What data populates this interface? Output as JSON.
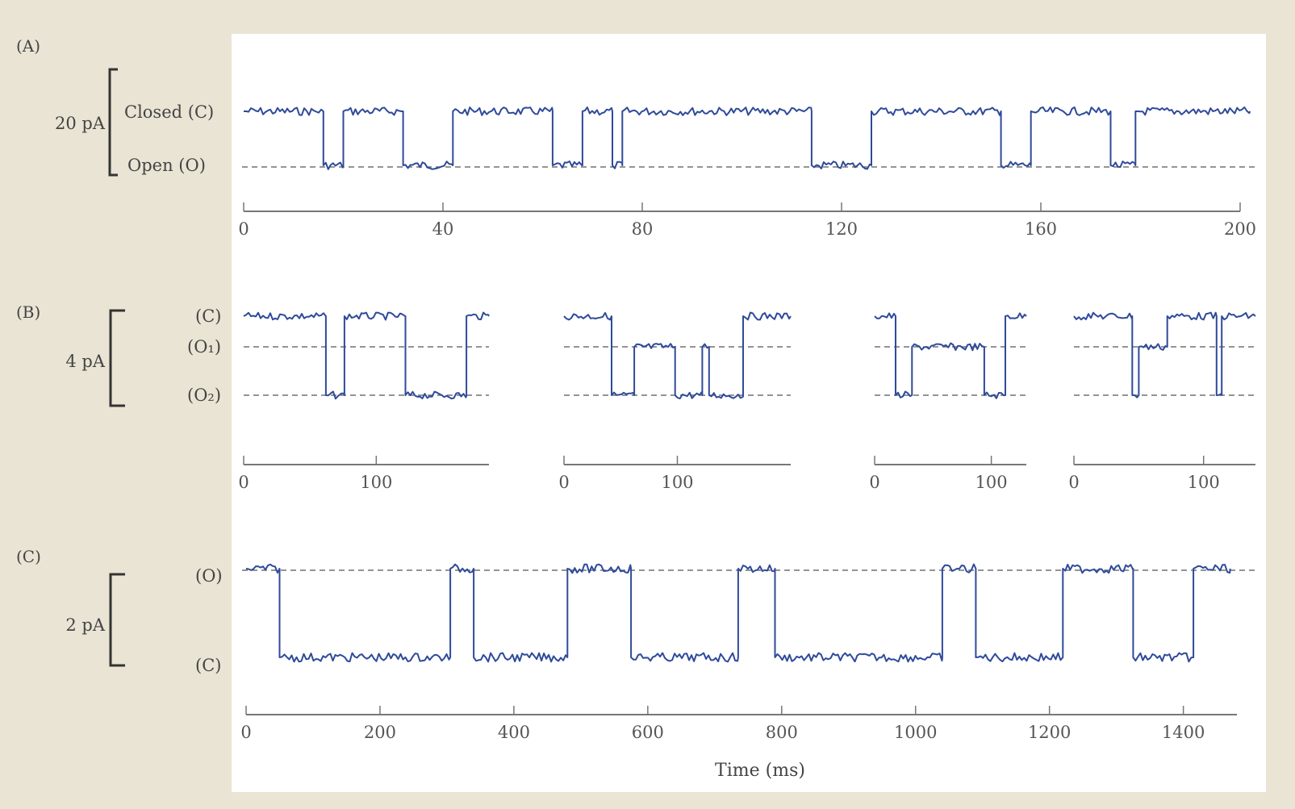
{
  "chart_data": [
    {
      "type": "line",
      "panel": "(A)",
      "scale_bar": "20 pA",
      "levels": [
        {
          "name": "closed",
          "label": "Closed (C)",
          "value": 0
        },
        {
          "name": "open",
          "label": "Open (O)",
          "value": -1
        }
      ],
      "xlim": [
        0,
        200
      ],
      "xticks": [
        0,
        40,
        80,
        120,
        160,
        200
      ],
      "segments": [
        {
          "xlim": [
            0,
            200
          ],
          "level_sequence": [
            [
              0,
              "C"
            ],
            [
              16,
              "O"
            ],
            [
              20,
              "C"
            ],
            [
              32,
              "O"
            ],
            [
              42,
              "C"
            ],
            [
              62,
              "O"
            ],
            [
              68,
              "C"
            ],
            [
              74,
              "O"
            ],
            [
              76,
              "C"
            ],
            [
              114,
              "O"
            ],
            [
              126,
              "C"
            ],
            [
              152,
              "O"
            ],
            [
              158,
              "C"
            ],
            [
              174,
              "O"
            ],
            [
              179,
              "C"
            ],
            [
              202,
              "C"
            ]
          ]
        }
      ]
    },
    {
      "type": "line",
      "panel": "(B)",
      "scale_bar": "4 pA",
      "levels": [
        {
          "name": "closed",
          "label": "(C)",
          "value": 0
        },
        {
          "name": "o1",
          "label": "(O₁)",
          "value": -1
        },
        {
          "name": "o2",
          "label": "(O₂)",
          "value": -2
        }
      ],
      "segments": [
        {
          "xlim": [
            0,
            185
          ],
          "xticks": [
            0,
            100
          ],
          "level_sequence": [
            [
              0,
              "C"
            ],
            [
              62,
              "O2"
            ],
            [
              72,
              "O2"
            ],
            [
              76,
              "C"
            ],
            [
              122,
              "O2"
            ],
            [
              168,
              "C"
            ],
            [
              185,
              "C"
            ]
          ]
        },
        {
          "xlim": [
            0,
            200
          ],
          "xticks": [
            0,
            100
          ],
          "level_sequence": [
            [
              0,
              "C"
            ],
            [
              42,
              "O2"
            ],
            [
              62,
              "O1"
            ],
            [
              98,
              "O2"
            ],
            [
              122,
              "O1"
            ],
            [
              128,
              "O2"
            ],
            [
              158,
              "C"
            ],
            [
              200,
              "C"
            ]
          ]
        },
        {
          "xlim": [
            0,
            130
          ],
          "xticks": [
            0,
            100
          ],
          "level_sequence": [
            [
              0,
              "C"
            ],
            [
              18,
              "O2"
            ],
            [
              32,
              "O1"
            ],
            [
              94,
              "O2"
            ],
            [
              112,
              "C"
            ],
            [
              130,
              "C"
            ]
          ]
        },
        {
          "xlim": [
            0,
            140
          ],
          "xticks": [
            0,
            100
          ],
          "level_sequence": [
            [
              0,
              "C"
            ],
            [
              45,
              "O2"
            ],
            [
              50,
              "O1"
            ],
            [
              72,
              "C"
            ],
            [
              110,
              "O2"
            ],
            [
              114,
              "C"
            ],
            [
              140,
              "C"
            ]
          ]
        }
      ]
    },
    {
      "type": "line",
      "panel": "(C)",
      "scale_bar": "2 pA",
      "levels": [
        {
          "name": "open",
          "label": "(O)",
          "value": 1
        },
        {
          "name": "closed",
          "label": "(C)",
          "value": 0
        }
      ],
      "xlim": [
        0,
        1480
      ],
      "xticks": [
        0,
        200,
        400,
        600,
        800,
        1000,
        1200,
        1400
      ],
      "xlabel": "Time (ms)",
      "segments": [
        {
          "xlim": [
            0,
            1470
          ],
          "level_sequence": [
            [
              0,
              "O"
            ],
            [
              50,
              "C"
            ],
            [
              305,
              "O"
            ],
            [
              340,
              "C"
            ],
            [
              480,
              "O"
            ],
            [
              575,
              "C"
            ],
            [
              735,
              "O"
            ],
            [
              790,
              "C"
            ],
            [
              1040,
              "O"
            ],
            [
              1090,
              "C"
            ],
            [
              1220,
              "O"
            ],
            [
              1325,
              "C"
            ],
            [
              1415,
              "O"
            ],
            [
              1470,
              "O"
            ]
          ]
        }
      ]
    }
  ],
  "colors": {
    "trace": "#2f4a9a",
    "background": "#e9e4d4",
    "plot": "#ffffff"
  }
}
